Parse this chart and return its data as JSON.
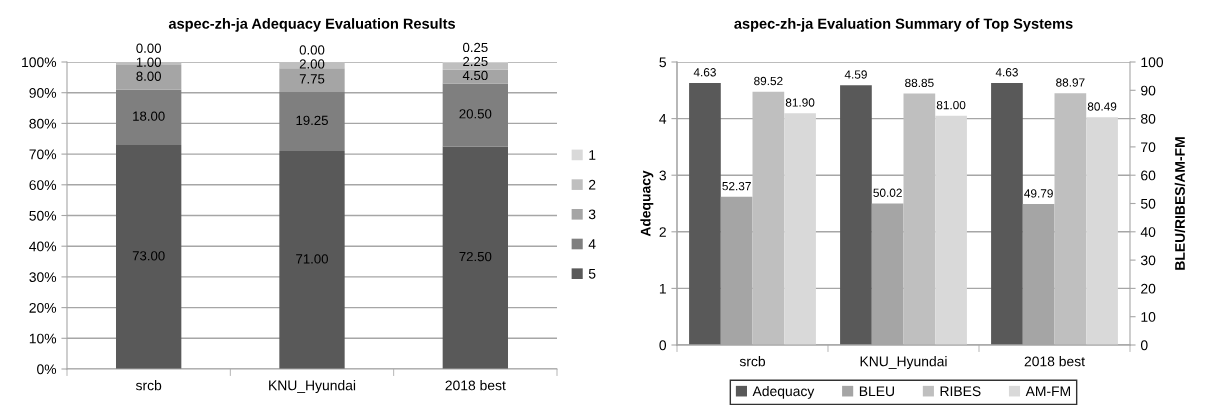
{
  "chart_data": [
    {
      "type": "bar",
      "title": "aspec-zh-ja Adequacy Evaluation Results",
      "categories": [
        "srcb",
        "KNU_Hyundai",
        "2018 best"
      ],
      "stacked": true,
      "series": [
        {
          "name": "5",
          "color": "#595959",
          "values": [
            73,
            71,
            72.5
          ],
          "value_labels": [
            "73.00",
            "71.00",
            "72.50"
          ]
        },
        {
          "name": "4",
          "color": "#7f7f7f",
          "values": [
            18,
            19.25,
            20.5
          ],
          "value_labels": [
            "18.00",
            "19.25",
            "20.50"
          ]
        },
        {
          "name": "3",
          "color": "#a5a5a5",
          "values": [
            8,
            7.75,
            4.5
          ],
          "value_labels": [
            "8.00",
            "7.75",
            "4.50"
          ]
        },
        {
          "name": "2",
          "color": "#bfbfbf",
          "values": [
            1,
            2,
            2.25
          ],
          "value_labels": [
            "1.00",
            "2.00",
            "2.25"
          ]
        },
        {
          "name": "1",
          "color": "#d9d9d9",
          "values": [
            0,
            0,
            0.25
          ],
          "value_labels": [
            "0.00",
            "0.00",
            "0.25"
          ]
        }
      ],
      "ylim": [
        0,
        100
      ],
      "yticks": [
        {
          "value": 0,
          "label": "0%"
        },
        {
          "value": 10,
          "label": "10%"
        },
        {
          "value": 20,
          "label": "20%"
        },
        {
          "value": 30,
          "label": "30%"
        },
        {
          "value": 40,
          "label": "40%"
        },
        {
          "value": 50,
          "label": "50%"
        },
        {
          "value": 60,
          "label": "60%"
        },
        {
          "value": 70,
          "label": "70%"
        },
        {
          "value": 80,
          "label": "80%"
        },
        {
          "value": 90,
          "label": "90%"
        },
        {
          "value": 100,
          "label": "100%"
        }
      ],
      "grid": "y",
      "legend": "right"
    },
    {
      "type": "bar",
      "title": "aspec-zh-ja Evaluation Summary of Top Systems",
      "categories": [
        "srcb",
        "KNU_Hyundai",
        "2018 best"
      ],
      "ylabel": "Adequacy",
      "y2label": "BLEU/RIBES/AM-FM",
      "series": [
        {
          "name": "Adequacy",
          "color": "#595959",
          "values": [
            4.63,
            4.59,
            4.63
          ],
          "value_labels": [
            "4.63",
            "4.59",
            "4.63"
          ]
        },
        {
          "name": "BLEU",
          "color": "#a5a5a5",
          "axis": "y2",
          "values": [
            52.37,
            50.02,
            49.79
          ],
          "value_labels": [
            "52.37",
            "50.02",
            "49.79"
          ]
        },
        {
          "name": "RIBES",
          "color": "#bfbfbf",
          "axis": "y2",
          "values": [
            89.52,
            88.85,
            88.97
          ],
          "value_labels": [
            "89.52",
            "88.85",
            "88.97"
          ]
        },
        {
          "name": "AM-FM",
          "color": "#d9d9d9",
          "axis": "y2",
          "values": [
            81.9,
            81.0,
            80.49
          ],
          "value_labels": [
            "81.90",
            "81.00",
            "80.49"
          ]
        }
      ],
      "ylim": [
        0,
        5
      ],
      "yticks": [
        0,
        1,
        2,
        3,
        4,
        5
      ],
      "y2lim": [
        0,
        100
      ],
      "y2ticks": [
        0,
        10,
        20,
        30,
        40,
        50,
        60,
        70,
        80,
        90,
        100
      ],
      "grid": "y",
      "legend": "bottom"
    }
  ]
}
